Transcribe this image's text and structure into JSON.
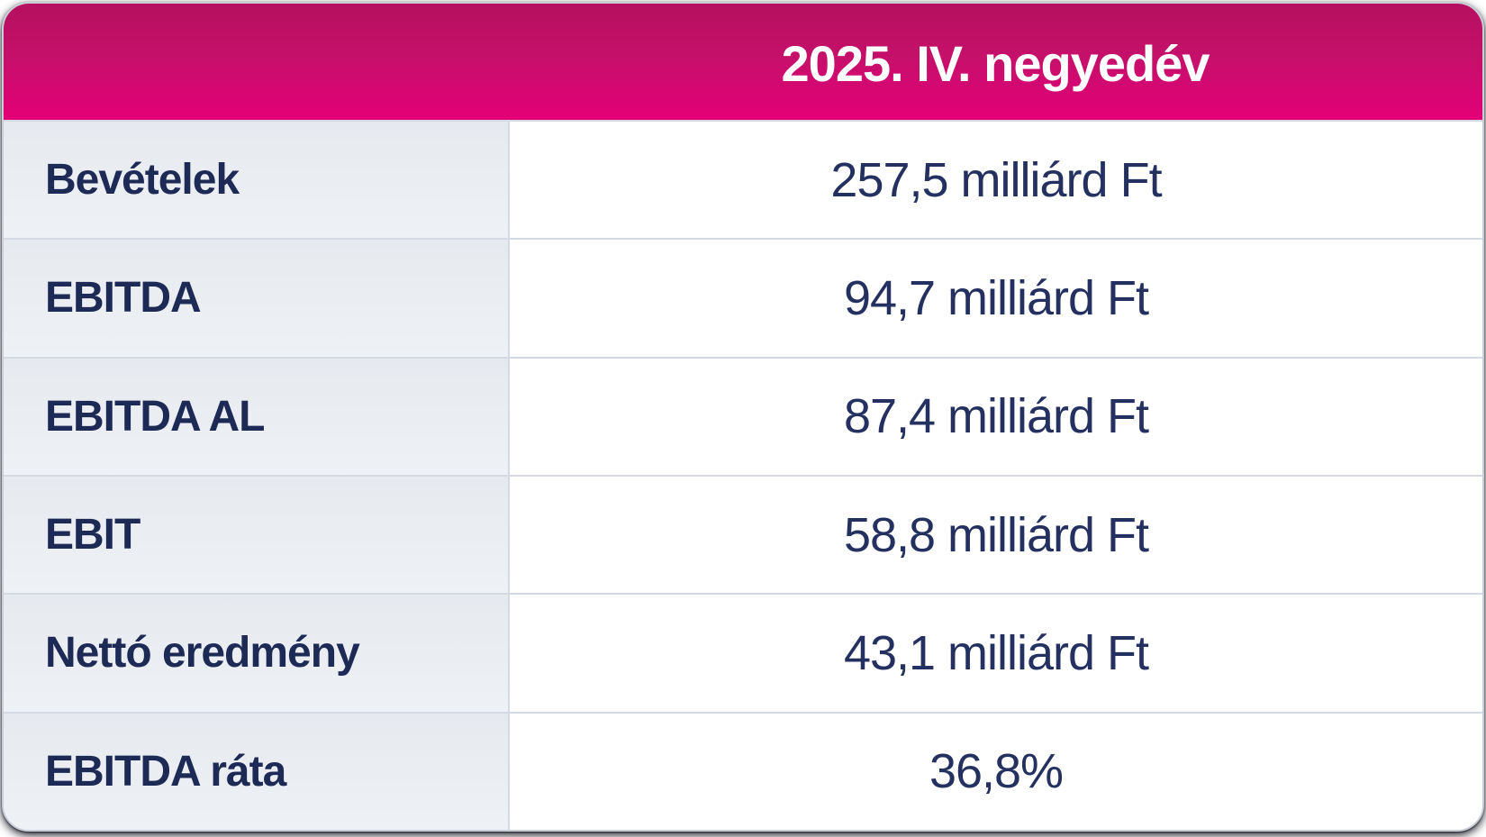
{
  "table": {
    "header": {
      "column_label": "2025. IV. negyedév"
    },
    "rows": [
      {
        "label": "Bevételek",
        "value": "257,5 milliárd Ft"
      },
      {
        "label": "EBITDA",
        "value": "94,7 milliárd Ft"
      },
      {
        "label": "EBITDA AL",
        "value": "87,4 milliárd Ft"
      },
      {
        "label": "EBIT",
        "value": "58,8 milliárd Ft"
      },
      {
        "label": "Nettó eredmény",
        "value": "43,1 milliárd Ft"
      },
      {
        "label": "EBITDA ráta",
        "value": "36,8%"
      }
    ]
  },
  "colors": {
    "header_gradient_top": "#b5105f",
    "header_gradient_bottom": "#e30077",
    "header_text": "#ffffff",
    "label_cell_bg": "#eaedf2",
    "value_cell_bg": "#ffffff",
    "separator": "#d5d9e1",
    "label_text": "#1e2a56",
    "value_text": "#243160",
    "card_border": "#c9cdd6"
  },
  "chart_data": {
    "type": "table",
    "title": "2025. IV. negyedév",
    "categories": [
      "Bevételek",
      "EBITDA",
      "EBITDA AL",
      "EBIT",
      "Nettó eredmény",
      "EBITDA ráta"
    ],
    "values": [
      257.5,
      94.7,
      87.4,
      58.8,
      43.1,
      36.8
    ],
    "units": [
      "milliárd Ft",
      "milliárd Ft",
      "milliárd Ft",
      "milliárd Ft",
      "milliárd Ft",
      "%"
    ],
    "columns": [
      "",
      "2025. IV. negyedév"
    ],
    "cells": [
      [
        "Bevételek",
        "257,5 milliárd Ft"
      ],
      [
        "EBITDA",
        "94,7 milliárd Ft"
      ],
      [
        "EBITDA AL",
        "87,4 milliárd Ft"
      ],
      [
        "EBIT",
        "58,8 milliárd Ft"
      ],
      [
        "Nettó eredmény",
        "43,1 milliárd Ft"
      ],
      [
        "EBITDA ráta",
        "36,8%"
      ]
    ]
  }
}
